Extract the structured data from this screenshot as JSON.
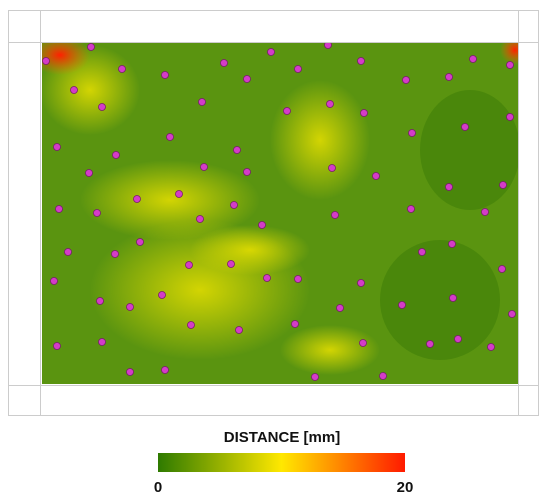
{
  "colorbar": {
    "title": "DISTANCE [mm]",
    "ticks": [
      0,
      20
    ],
    "colors": [
      "#2e7a00",
      "#ffe800",
      "#ff1a00"
    ]
  }
}
